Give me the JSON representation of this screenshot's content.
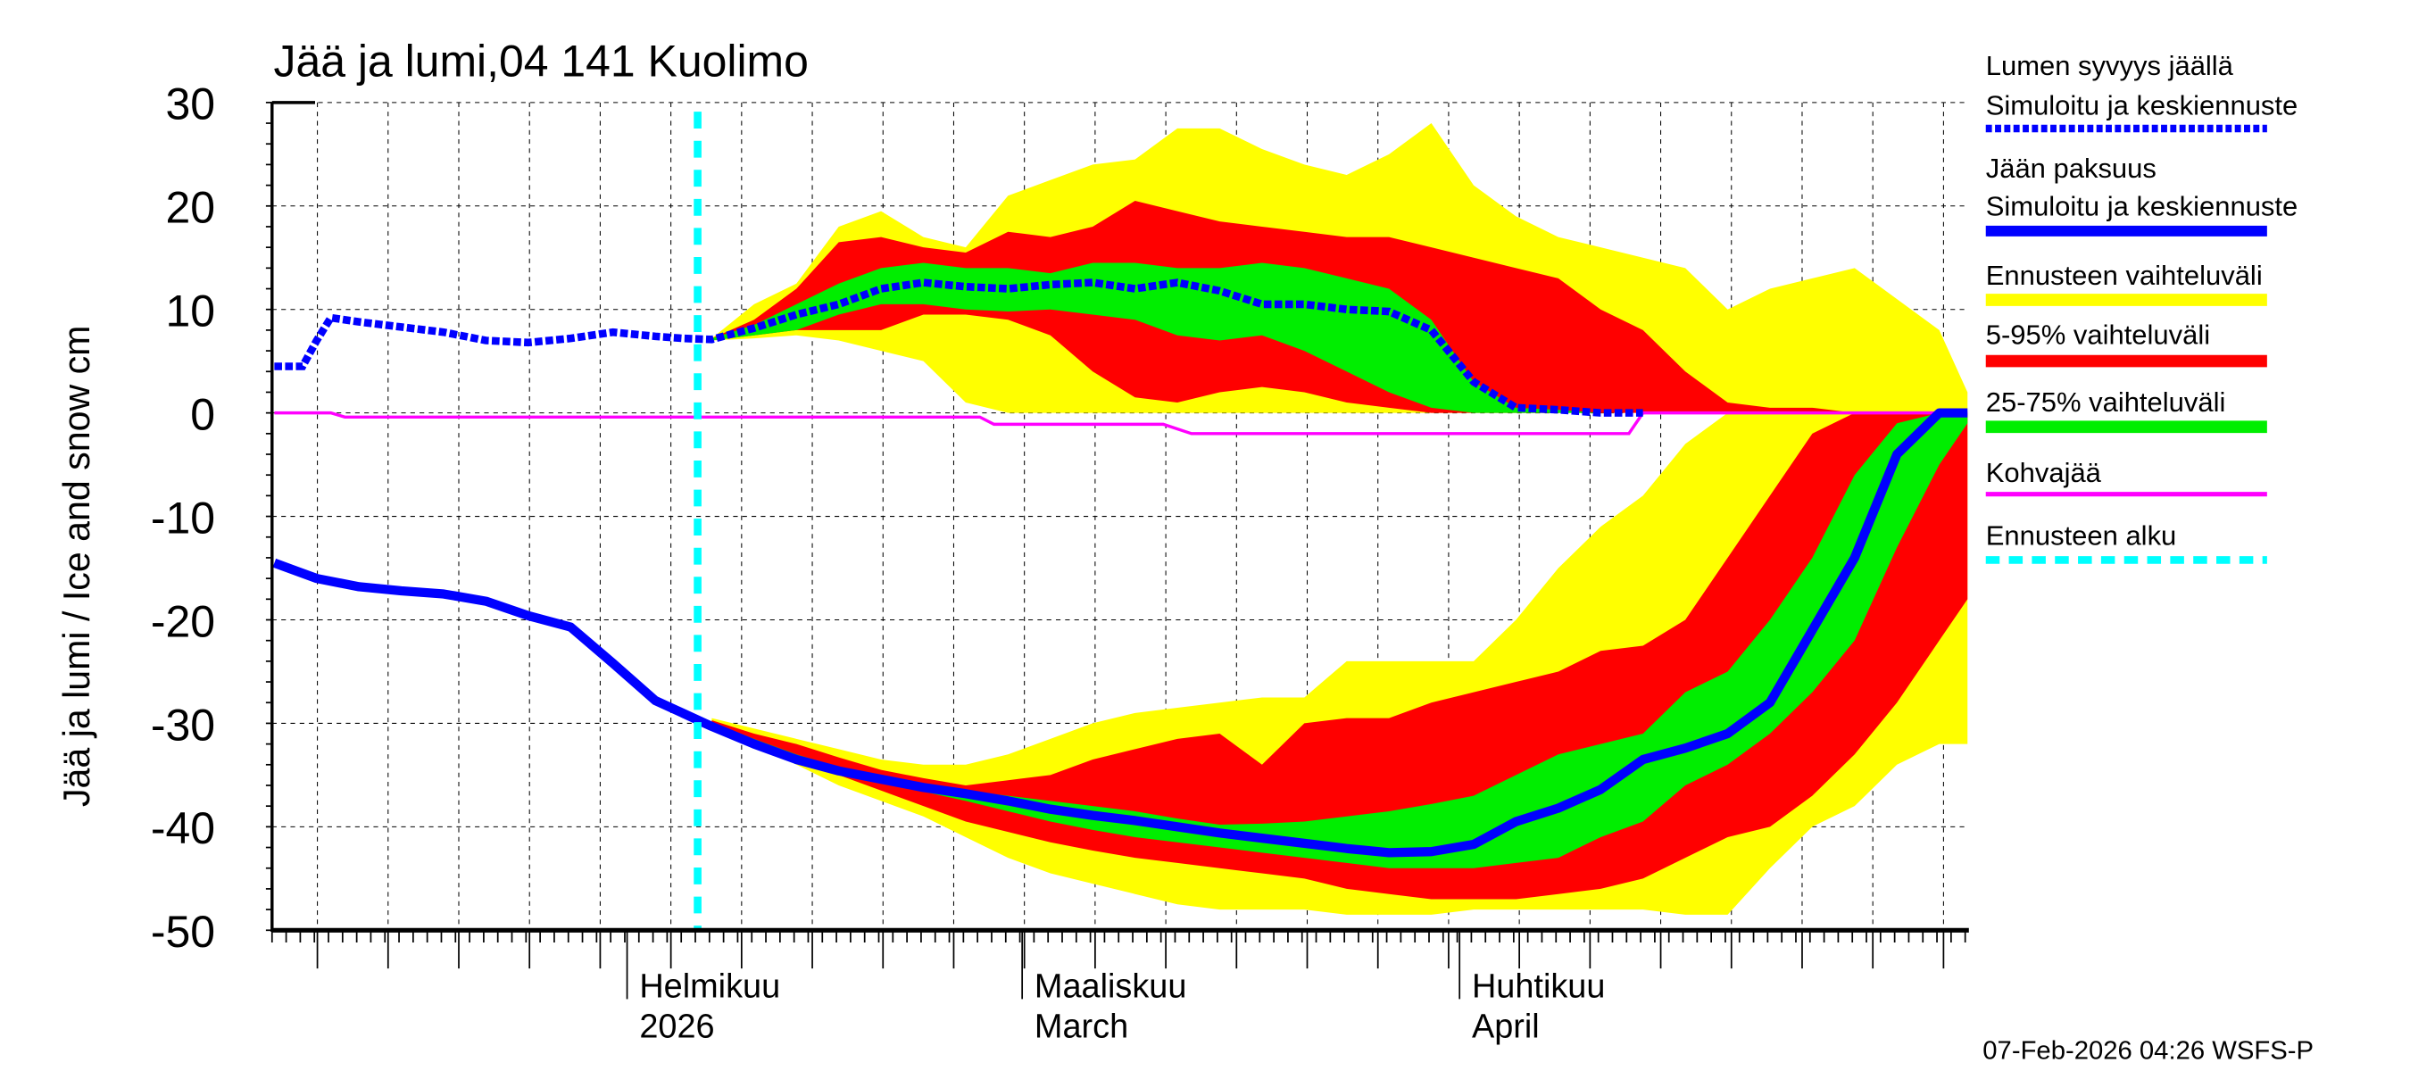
{
  "chart_data": {
    "type": "area",
    "title": "Jää ja lumi,04 141 Kuolimo",
    "ylabel": "Jää ja lumi / Ice and snow    cm",
    "xlabel": "",
    "ylim": [
      -50,
      30
    ],
    "yticks": [
      30,
      20,
      10,
      0,
      -10,
      -20,
      -30,
      -40,
      -50
    ],
    "xlim": [
      "2026-01-07",
      "2026-05-07"
    ],
    "grid": true,
    "legend_position": "right",
    "forecast_start": "2026-02-06",
    "month_labels": [
      {
        "date": "2026-02-01",
        "line1": "Helmikuu",
        "line2": "2026"
      },
      {
        "date": "2026-03-01",
        "line1": "Maaliskuu",
        "line2": "March"
      },
      {
        "date": "2026-04-01",
        "line1": "Huhtikuu",
        "line2": "April"
      }
    ],
    "forecast_dates": [
      "2026-02-07",
      "2026-02-10",
      "2026-02-13",
      "2026-02-16",
      "2026-02-19",
      "2026-02-22",
      "2026-02-25",
      "2026-02-28",
      "2026-03-03",
      "2026-03-06",
      "2026-03-09",
      "2026-03-12",
      "2026-03-15",
      "2026-03-18",
      "2026-03-21",
      "2026-03-24",
      "2026-03-27",
      "2026-03-30",
      "2026-04-02",
      "2026-04-05",
      "2026-04-08",
      "2026-04-11",
      "2026-04-14",
      "2026-04-17",
      "2026-04-20",
      "2026-04-23",
      "2026-04-26",
      "2026-04-29",
      "2026-05-02",
      "2026-05-05",
      "2026-05-07"
    ],
    "bands": {
      "snow": {
        "range_max": [
          7.2,
          10.5,
          12.5,
          18,
          19.5,
          17,
          16,
          21,
          22.5,
          24,
          24.5,
          27.5,
          27.5,
          25.5,
          24,
          23,
          25,
          28,
          22,
          19,
          17,
          16,
          15,
          14,
          10,
          12,
          13,
          14,
          11,
          8,
          2
        ],
        "range_min": [
          7,
          7.2,
          7.5,
          7,
          6,
          5,
          1,
          0,
          0,
          0,
          0,
          0,
          0,
          0,
          0,
          0,
          0,
          0,
          0,
          0,
          0,
          0,
          0,
          0,
          0,
          0,
          0,
          0,
          0,
          0,
          0
        ],
        "p95": [
          7.2,
          9,
          12,
          16.5,
          17,
          16,
          15.5,
          17.5,
          17,
          18,
          20.5,
          19.5,
          18.5,
          18,
          17.5,
          17,
          17,
          16,
          15,
          14,
          13,
          10,
          8,
          4,
          1,
          0.5,
          0.5,
          0,
          0,
          0,
          0
        ],
        "p5": [
          7,
          7.5,
          8,
          8,
          8,
          9.5,
          9.5,
          9,
          7.5,
          4,
          1.5,
          1,
          2,
          2.5,
          2,
          1,
          0.5,
          0,
          0,
          0,
          0,
          0,
          0,
          0,
          0,
          0,
          0,
          0,
          0,
          0,
          0
        ],
        "p75": [
          7.2,
          8.5,
          10.5,
          12.5,
          14,
          14.5,
          14,
          14,
          13.5,
          14.5,
          14.5,
          14,
          14,
          14.5,
          14,
          13,
          12,
          9,
          3,
          0.5,
          0.3,
          0,
          0,
          0,
          0,
          0,
          0,
          0,
          0,
          0,
          0
        ],
        "p25": [
          7,
          7.5,
          8,
          9.5,
          10.5,
          10.5,
          10,
          9.8,
          10,
          9.5,
          9,
          7.5,
          7,
          7.5,
          6,
          4,
          2,
          0.5,
          0,
          0,
          0,
          0,
          0,
          0,
          0,
          0,
          0,
          0,
          0,
          0,
          0
        ]
      },
      "ice": {
        "range_max": [
          -29.5,
          -30.5,
          -31.5,
          -32.5,
          -33.5,
          -34,
          -34,
          -33,
          -31.5,
          -30,
          -29,
          -28.5,
          -28,
          -27.5,
          -27.5,
          -24,
          -24,
          -24,
          -24,
          -20,
          -15,
          -11,
          -8,
          -3,
          0,
          0,
          0,
          0,
          0,
          0,
          0
        ],
        "range_min": [
          -30,
          -32,
          -34,
          -36,
          -37.5,
          -39,
          -41,
          -43,
          -44.5,
          -45.5,
          -46.5,
          -47.5,
          -48,
          -48,
          -48,
          -48.5,
          -48.5,
          -48.5,
          -48,
          -48,
          -48,
          -48,
          -48,
          -48.5,
          -48.5,
          -44,
          -40,
          -38,
          -34,
          -32,
          -32
        ],
        "p95": [
          -29.7,
          -31,
          -32,
          -33.3,
          -34.5,
          -35.3,
          -36,
          -35.5,
          -35,
          -33.5,
          -32.5,
          -31.5,
          -31,
          -34,
          -30,
          -29.5,
          -29.5,
          -28,
          -27,
          -26,
          -25,
          -23,
          -22.5,
          -20,
          -14,
          -8,
          -2,
          0,
          0,
          0,
          0
        ],
        "p5": [
          -30,
          -32,
          -33.5,
          -35,
          -36.5,
          -38,
          -39.5,
          -40.5,
          -41.5,
          -42.3,
          -43,
          -43.5,
          -44,
          -44.5,
          -45,
          -46,
          -46.5,
          -47,
          -47,
          -47,
          -46.5,
          -46,
          -45,
          -43,
          -41,
          -40,
          -37,
          -33,
          -28,
          -22,
          -18
        ],
        "p75": [
          -29.9,
          -31.5,
          -33,
          -34.2,
          -35.2,
          -35.8,
          -36.5,
          -37,
          -37.5,
          -38,
          -38.5,
          -39.2,
          -39.8,
          -39.7,
          -39.5,
          -39,
          -38.5,
          -37.8,
          -37,
          -35,
          -33,
          -32,
          -31,
          -27,
          -25,
          -20,
          -14,
          -6,
          -1,
          0,
          0
        ],
        "p25": [
          -30.1,
          -32,
          -33.7,
          -34.8,
          -35.8,
          -36.6,
          -37.5,
          -38.5,
          -39.5,
          -40.3,
          -41,
          -41.5,
          -42,
          -42.5,
          -43,
          -43.5,
          -44,
          -44,
          -44,
          -43.5,
          -43,
          -41,
          -39.5,
          -36,
          -34,
          -31,
          -27,
          -22,
          -13,
          -5,
          -1
        ]
      }
    },
    "series": [
      {
        "name": "Lumen syvyys jäällä — Simuloitu ja keskiennuste",
        "dates": [
          "2026-01-07",
          "2026-01-09",
          "2026-01-10",
          "2026-01-11",
          "2026-01-13",
          "2026-01-16",
          "2026-01-19",
          "2026-01-22",
          "2026-01-25",
          "2026-01-28",
          "2026-01-31",
          "2026-02-03",
          "2026-02-05",
          "2026-02-07",
          "2026-02-10",
          "2026-02-13",
          "2026-02-16",
          "2026-02-19",
          "2026-02-22",
          "2026-02-25",
          "2026-02-28",
          "2026-03-03",
          "2026-03-06",
          "2026-03-09",
          "2026-03-12",
          "2026-03-15",
          "2026-03-18",
          "2026-03-21",
          "2026-03-24",
          "2026-03-27",
          "2026-03-30",
          "2026-04-02",
          "2026-04-05",
          "2026-04-08",
          "2026-04-11",
          "2026-04-14"
        ],
        "values": [
          4.5,
          4.5,
          7,
          9.2,
          8.8,
          8.3,
          7.8,
          7,
          6.8,
          7.2,
          7.8,
          7.4,
          7.2,
          7.1,
          8.2,
          9.5,
          10.5,
          12,
          12.6,
          12.2,
          12,
          12.4,
          12.6,
          12,
          12.6,
          11.8,
          10.5,
          10.5,
          10,
          9.8,
          8,
          3,
          0.5,
          0.3,
          0,
          0
        ]
      },
      {
        "name": "Jään paksuus — Simuloitu ja keskiennuste",
        "dates": [
          "2026-01-07",
          "2026-01-10",
          "2026-01-13",
          "2026-01-16",
          "2026-01-19",
          "2026-01-22",
          "2026-01-25",
          "2026-01-28",
          "2026-01-31",
          "2026-02-03",
          "2026-02-07",
          "2026-02-10",
          "2026-02-13",
          "2026-02-16",
          "2026-02-19",
          "2026-02-22",
          "2026-02-25",
          "2026-02-28",
          "2026-03-03",
          "2026-03-06",
          "2026-03-09",
          "2026-03-12",
          "2026-03-15",
          "2026-03-18",
          "2026-03-21",
          "2026-03-24",
          "2026-03-27",
          "2026-03-30",
          "2026-04-02",
          "2026-04-05",
          "2026-04-08",
          "2026-04-11",
          "2026-04-14",
          "2026-04-17",
          "2026-04-20",
          "2026-04-23",
          "2026-04-26",
          "2026-04-29",
          "2026-05-02",
          "2026-05-05",
          "2026-05-07"
        ],
        "values": [
          -14.5,
          -16,
          -16.8,
          -17.2,
          -17.5,
          -18.2,
          -19.6,
          -20.7,
          -24.2,
          -27.8,
          -30.3,
          -32,
          -33.5,
          -34.6,
          -35.4,
          -36.2,
          -36.8,
          -37.5,
          -38.3,
          -38.9,
          -39.4,
          -40,
          -40.6,
          -41.1,
          -41.6,
          -42.1,
          -42.5,
          -42.4,
          -41.7,
          -39.5,
          -38.2,
          -36.4,
          -33.5,
          -32.4,
          -31,
          -28,
          -21,
          -14,
          -4,
          0,
          0
        ]
      },
      {
        "name": "Kohvajää",
        "dates": [
          "2026-01-07",
          "2026-01-11",
          "2026-01-12",
          "2026-02-26",
          "2026-02-27",
          "2026-03-11",
          "2026-03-13",
          "2026-04-13",
          "2026-04-14",
          "2026-05-07"
        ],
        "values": [
          0,
          0,
          -0.4,
          -0.4,
          -1.1,
          -1.1,
          -2,
          -2,
          0,
          0
        ]
      }
    ],
    "colors": {
      "snow_line": "#0000ff",
      "ice_line": "#0000ff",
      "range": "#ffff00",
      "p5_95": "#ff0000",
      "p25_75": "#00ee00",
      "kohva": "#ff00ff",
      "forecast_start": "#00ffff"
    },
    "legend": [
      {
        "line1": "Lumen syvyys jäällä",
        "line2": "Simuloitu ja keskiennuste",
        "style": "dotted-blue"
      },
      {
        "line1": "Jään paksuus",
        "line2": "Simuloitu ja keskiennuste",
        "style": "solid-blue"
      },
      {
        "line1": "Ennusteen vaihteluväli",
        "style": "yellow-band"
      },
      {
        "line1": "5-95% vaihteluväli",
        "style": "red-band"
      },
      {
        "line1": "25-75% vaihteluväli",
        "style": "green-band"
      },
      {
        "line1": "Kohvajää",
        "style": "magenta-line"
      },
      {
        "line1": "Ennusteen alku",
        "style": "cyan-dashed"
      }
    ],
    "footer": "07-Feb-2026 04:26 WSFS-P"
  }
}
